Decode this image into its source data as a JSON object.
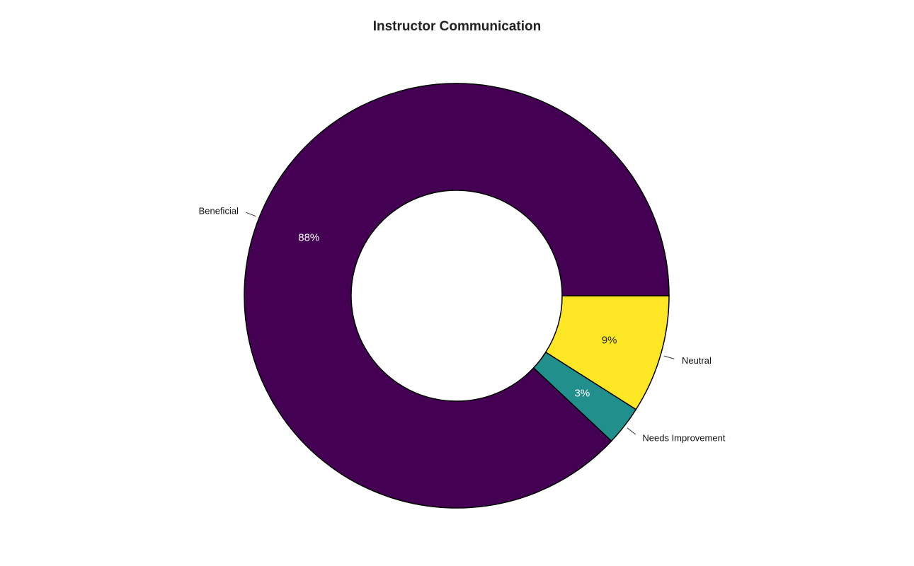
{
  "chart_data": {
    "type": "pie",
    "title": "Instructor Communication",
    "categories": [
      "Neutral",
      "Needs Improvement",
      "Beneficial"
    ],
    "values": [
      9,
      3,
      88
    ],
    "value_labels": [
      "9%",
      "3%",
      "88%"
    ],
    "colors": [
      "#FDE725",
      "#21908C",
      "#440154"
    ],
    "label_colors": [
      "#222222",
      "#ffffff",
      "#ffffff"
    ],
    "donut": true,
    "legend": "none"
  }
}
